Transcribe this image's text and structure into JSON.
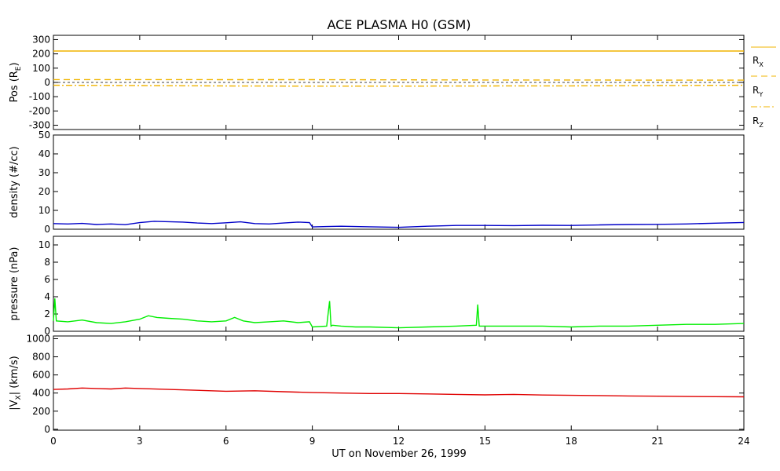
{
  "title": "ACE PLASMA H0 (GSM)",
  "xlabel": "UT on November 26, 1999",
  "x_ticks": [
    "0",
    "3",
    "6",
    "9",
    "12",
    "15",
    "18",
    "21",
    "24"
  ],
  "colors": {
    "position": "#f0b400",
    "density": "#0000c8",
    "pressure": "#00ee00",
    "velocity": "#e00000",
    "axes": "#000000"
  },
  "legend": {
    "rx": {
      "main": "R",
      "sub": "X"
    },
    "ry": {
      "main": "R",
      "sub": "Y"
    },
    "rz": {
      "main": "R",
      "sub": "Z"
    }
  },
  "chart_data": [
    {
      "type": "line",
      "ylabel_main": "Pos (R",
      "ylabel_sub": "E",
      "ylabel_end": ")",
      "ylim": [
        -330,
        330
      ],
      "y_ticks": [
        "-300",
        "-200",
        "-100",
        "0",
        "100",
        "200",
        "300"
      ],
      "y_tick_values": [
        -300,
        -200,
        -100,
        0,
        100,
        200,
        300
      ],
      "xlim": [
        0,
        24
      ],
      "zero_line": true,
      "series": [
        {
          "name": "R_X",
          "x": [
            0,
            24
          ],
          "values": [
            220,
            220
          ]
        },
        {
          "name": "R_Y",
          "x": [
            0,
            3,
            6,
            9,
            12,
            15,
            18,
            21,
            24
          ],
          "values": [
            20,
            20,
            19,
            19,
            18,
            17,
            17,
            16,
            16
          ]
        },
        {
          "name": "R_Z",
          "x": [
            0,
            3,
            6,
            9,
            12,
            15,
            18,
            21,
            24
          ],
          "values": [
            -20,
            -22,
            -25,
            -26,
            -26,
            -25,
            -24,
            -22,
            -20
          ]
        }
      ]
    },
    {
      "type": "line",
      "ylabel": "density (#/cc)",
      "ylim": [
        0,
        50
      ],
      "y_ticks": [
        "0",
        "10",
        "20",
        "30",
        "40",
        "50"
      ],
      "y_tick_values": [
        0,
        10,
        20,
        30,
        40,
        50
      ],
      "xlim": [
        0,
        24
      ],
      "series": [
        {
          "name": "density",
          "x": [
            0,
            0.5,
            1,
            1.5,
            2,
            2.5,
            3,
            3.5,
            4,
            4.5,
            5,
            5.5,
            6,
            6.5,
            7,
            7.5,
            8,
            8.5,
            8.9,
            9,
            9.5,
            10,
            11,
            12,
            13,
            14,
            15,
            16,
            17,
            18,
            19,
            20,
            21,
            22,
            23,
            24
          ],
          "values": [
            3,
            2.8,
            3.1,
            2.5,
            2.8,
            2.4,
            3.5,
            4.2,
            4,
            3.8,
            3.3,
            3,
            3.4,
            3.9,
            3,
            2.8,
            3.3,
            3.8,
            3.5,
            1.2,
            1.4,
            1.6,
            1.3,
            1.0,
            1.6,
            2.0,
            2.0,
            1.9,
            2.1,
            2.0,
            2.3,
            2.5,
            2.6,
            2.8,
            3.2,
            3.6
          ]
        }
      ]
    },
    {
      "type": "line",
      "ylabel": "pressure (nPa)",
      "ylim": [
        0,
        11
      ],
      "y_ticks": [
        "0",
        "2",
        "4",
        "6",
        "8",
        "10"
      ],
      "y_tick_values": [
        0,
        2,
        4,
        6,
        8,
        10
      ],
      "xlim": [
        0,
        24
      ],
      "series": [
        {
          "name": "pressure",
          "x": [
            0,
            0.05,
            0.1,
            0.5,
            1,
            1.5,
            2,
            2.5,
            3,
            3.3,
            3.6,
            4,
            4.5,
            5,
            5.5,
            6,
            6.3,
            6.6,
            7,
            7.5,
            8,
            8.5,
            8.9,
            9,
            9.5,
            9.6,
            9.65,
            9.7,
            10,
            10.5,
            11,
            12,
            13,
            14,
            14.7,
            14.75,
            14.8,
            15,
            16,
            17,
            18,
            19,
            20,
            21,
            22,
            23,
            24
          ],
          "values": [
            1.2,
            3.8,
            1.2,
            1.1,
            1.3,
            1.0,
            0.9,
            1.1,
            1.4,
            1.8,
            1.6,
            1.5,
            1.4,
            1.2,
            1.1,
            1.2,
            1.6,
            1.2,
            1.0,
            1.1,
            1.2,
            1.0,
            1.1,
            0.5,
            0.6,
            3.5,
            0.6,
            0.7,
            0.6,
            0.5,
            0.5,
            0.4,
            0.5,
            0.6,
            0.7,
            3.1,
            0.6,
            0.6,
            0.6,
            0.6,
            0.5,
            0.6,
            0.6,
            0.7,
            0.8,
            0.8,
            0.9
          ]
        }
      ]
    },
    {
      "type": "line",
      "ylabel_main": "|V",
      "ylabel_sub": "X",
      "ylabel_end": "| (km/s)",
      "ylim": [
        -10,
        1030
      ],
      "y_ticks": [
        "0",
        "200",
        "400",
        "600",
        "800",
        "1000"
      ],
      "y_tick_values": [
        0,
        200,
        400,
        600,
        800,
        1000
      ],
      "xlim": [
        0,
        24
      ],
      "series": [
        {
          "name": "velocity",
          "x": [
            0,
            0.5,
            1,
            1.5,
            2,
            2.5,
            3,
            4,
            5,
            6,
            7,
            8,
            9,
            10,
            11,
            12,
            13,
            14,
            15,
            16,
            17,
            18,
            19,
            20,
            21,
            22,
            23,
            24
          ],
          "values": [
            440,
            445,
            455,
            450,
            445,
            455,
            450,
            440,
            430,
            420,
            425,
            415,
            405,
            400,
            395,
            395,
            390,
            385,
            380,
            385,
            378,
            375,
            372,
            368,
            365,
            362,
            360,
            358
          ]
        }
      ]
    }
  ]
}
